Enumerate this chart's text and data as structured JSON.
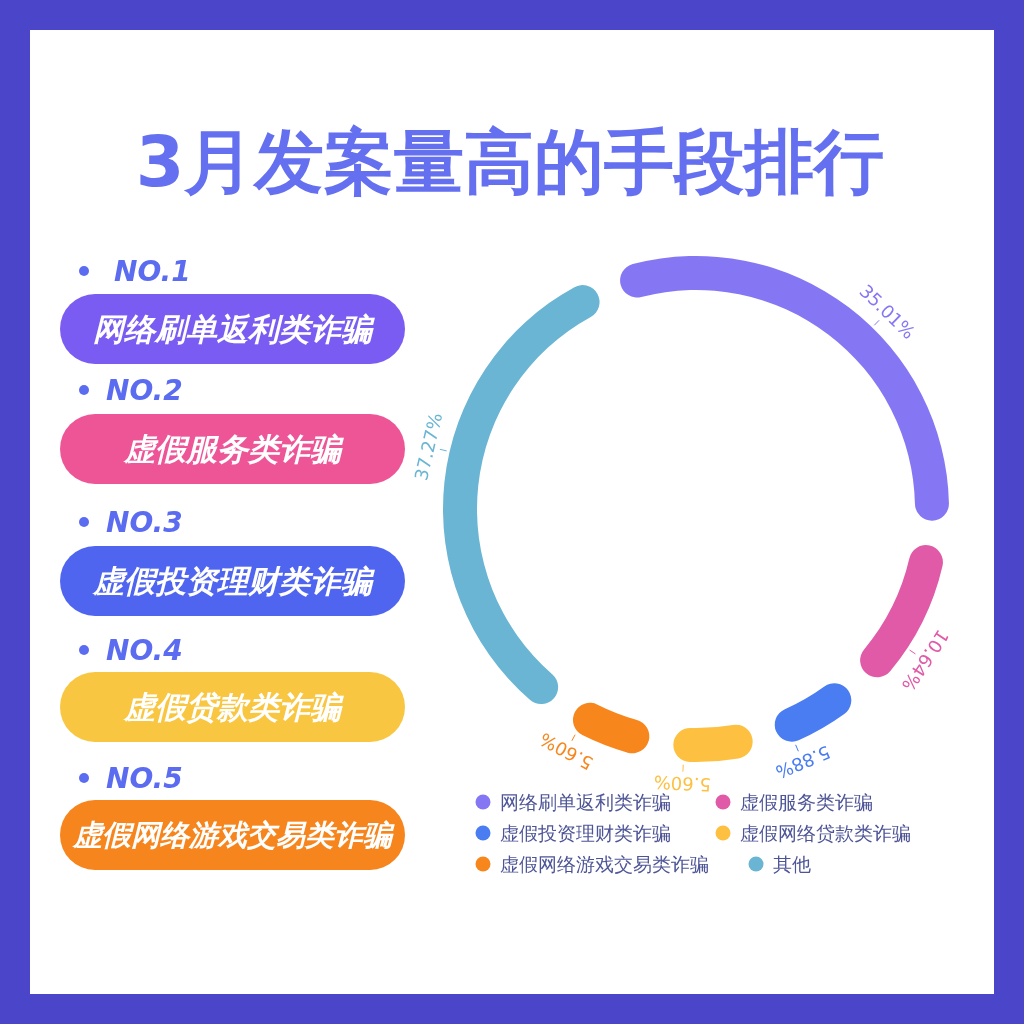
{
  "chart_data": [
    {
      "type": "other",
      "title": "3月发案量高的手段排行",
      "annotations": [
        "NO.1",
        "网络刷单返利类诈骗",
        "NO.2",
        "虚假服务类诈骗",
        "NO.3",
        "虚假投资理财类诈骗",
        "NO.4",
        "虚假贷款类诈骗",
        "NO.5",
        "虚假网络游戏交易类诈骗"
      ]
    },
    {
      "type": "donut",
      "categories": [
        "网络刷单返利类诈骗",
        "虚假服务类诈骗",
        "虚假投资理财类诈骗",
        "虚假网络贷款类诈骗",
        "虚假网络游戏交易类诈骗",
        "其他"
      ],
      "values": [
        35.01,
        10.64,
        5.88,
        5.6,
        5.6,
        37.27
      ],
      "colors": [
        "#8577f4",
        "#e05aa8",
        "#4a7cf2",
        "#fdc040",
        "#f7861c",
        "#69b5d3"
      ],
      "value_labels": [
        "35.01%",
        "10.64%",
        "5.88%",
        "5.60%",
        "5.60%",
        "37.27%"
      ],
      "legend": "bottom"
    }
  ]
}
